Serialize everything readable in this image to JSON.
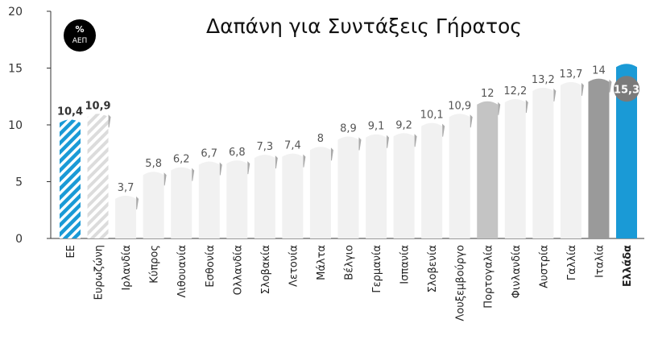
{
  "chart_data": {
    "type": "bar",
    "title": "Δαπάνη για Συντάξεις Γήρατος",
    "unit_badge": {
      "line1": "%",
      "line2": "ΑΕΠ"
    },
    "ylim": [
      0,
      20
    ],
    "yticks": [
      0,
      5,
      10,
      15,
      20
    ],
    "grid": false,
    "categories": [
      "ΕΕ",
      "Ευρωζώνη",
      "Ιρλανδία",
      "Κύπρος",
      "Λιθουανία",
      "Εσθονία",
      "Ολλανδία",
      "Σλοβακία",
      "Λετονία",
      "Μάλτα",
      "Βέλγιο",
      "Γερμανία",
      "Ισπανία",
      "Σλοβενία",
      "Λουξεμβούργο",
      "Πορτογαλία",
      "Φινλανδία",
      "Αυστρία",
      "Γαλλία",
      "Ιταλία",
      "Ελλάδα"
    ],
    "values": [
      10.4,
      10.9,
      3.7,
      5.8,
      6.2,
      6.7,
      6.8,
      7.3,
      7.4,
      8,
      8.9,
      9.1,
      9.2,
      10.1,
      10.9,
      12,
      12.2,
      13.2,
      13.7,
      14,
      15.3
    ],
    "value_labels": [
      "10,4",
      "10,9",
      "3,7",
      "5,8",
      "6,2",
      "6,7",
      "6,8",
      "7,3",
      "7,4",
      "8",
      "8,9",
      "9,1",
      "9,2",
      "10,1",
      "10,9",
      "12",
      "12,2",
      "13,2",
      "13,7",
      "14",
      "15,3"
    ],
    "highlight_index": 20,
    "bold_category_index": 20,
    "bar_styles": [
      "hatch-blue",
      "hatch-grey",
      "light",
      "light",
      "light",
      "light",
      "light",
      "light",
      "light",
      "light",
      "light",
      "light",
      "light",
      "light",
      "light",
      "mid",
      "light",
      "light",
      "light",
      "dark",
      "blue"
    ],
    "colors": {
      "blue": "#1a9ad6",
      "light": "#f1f1f1",
      "mid": "#c4c4c4",
      "dark": "#9a9a9a",
      "hatch_grey": "#d6d6d6",
      "label": "#555555",
      "axis": "#333333",
      "highlight_badge": "#7a7a7a"
    }
  }
}
